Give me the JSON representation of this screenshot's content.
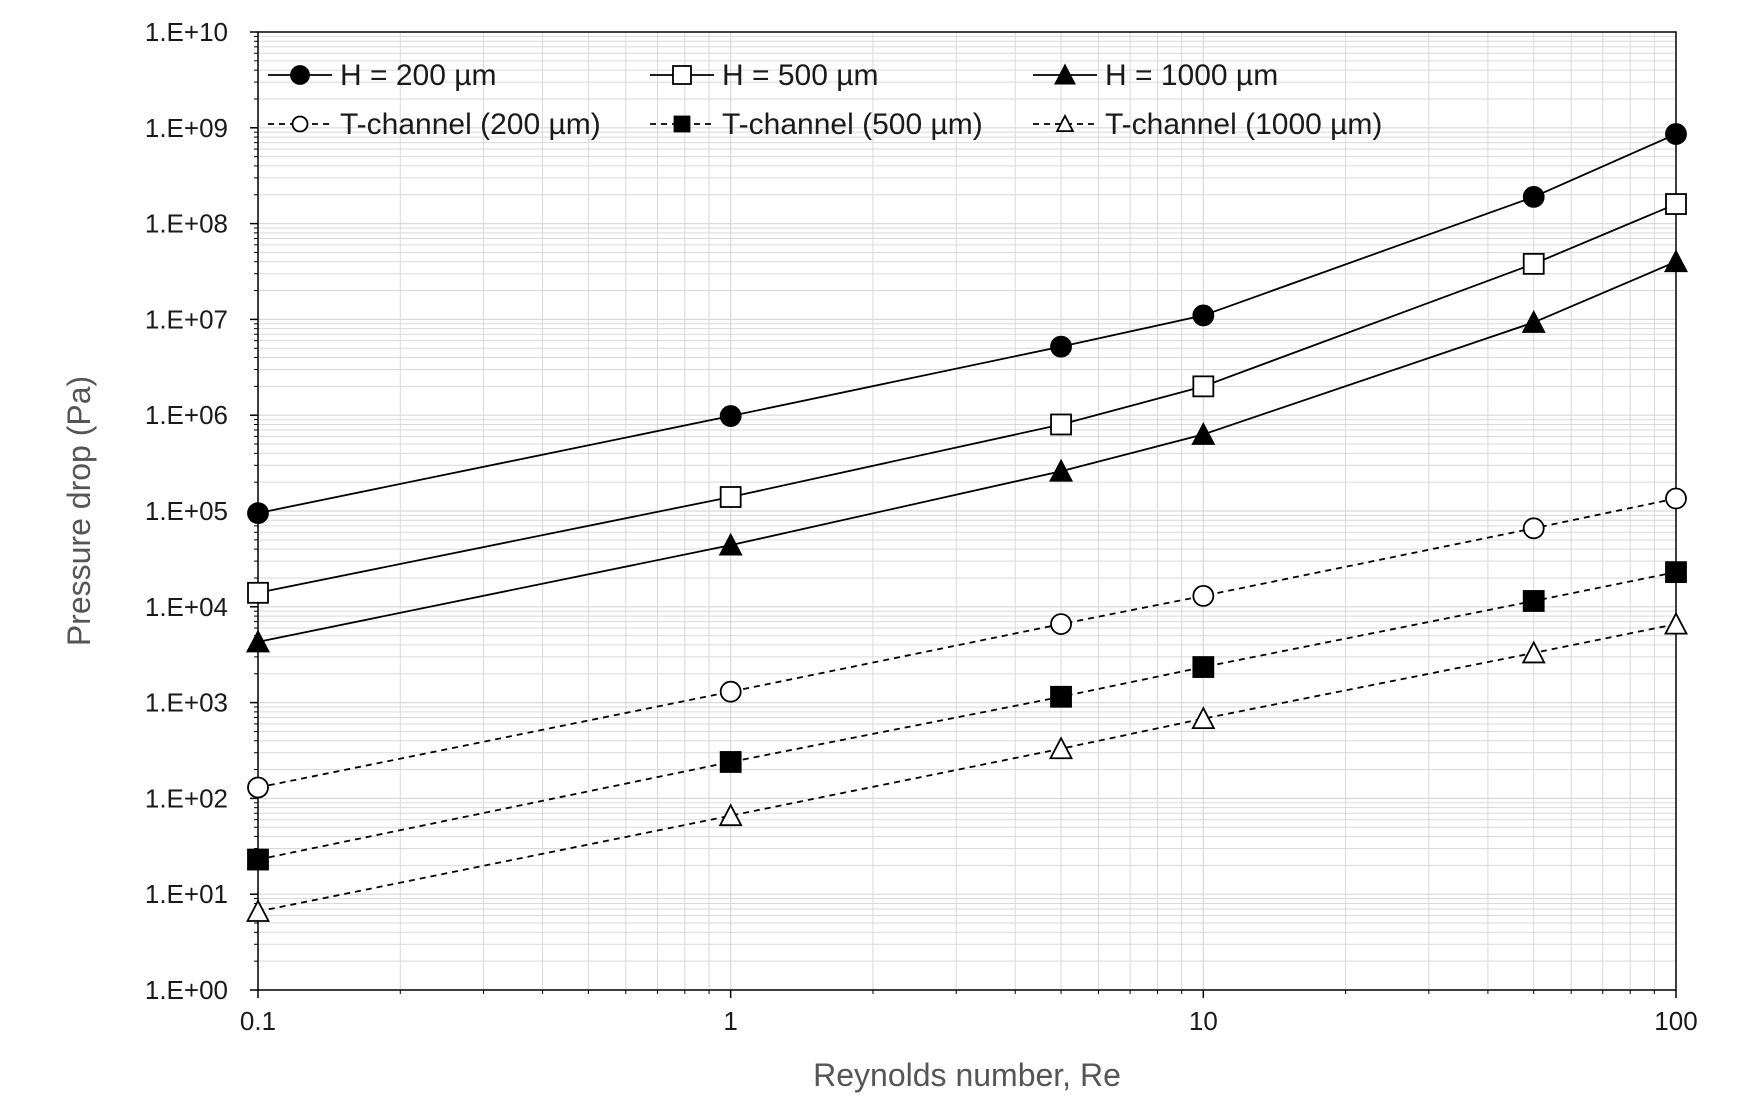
{
  "chart_data": {
    "type": "line",
    "title": "",
    "xlabel": "Reynolds number, Re",
    "ylabel": "Pressure drop (Pa)",
    "x_scale": "log",
    "y_scale": "log",
    "xlim": [
      0.1,
      100
    ],
    "ylim": [
      1,
      10000000000
    ],
    "x_ticks": [
      0.1,
      1,
      10,
      100
    ],
    "x_tick_labels": [
      "0.1",
      "1",
      "10",
      "100"
    ],
    "y_ticks": [
      1,
      10,
      100,
      1000,
      10000,
      100000,
      1000000,
      10000000,
      100000000,
      1000000000,
      10000000000
    ],
    "y_tick_labels": [
      "1.E+00",
      "1.E+01",
      "1.E+02",
      "1.E+03",
      "1.E+04",
      "1.E+05",
      "1.E+06",
      "1.E+07",
      "1.E+08",
      "1.E+09",
      "1.E+10"
    ],
    "grid": true,
    "legend_position": "top, inside plot area, two rows of three",
    "x": [
      0.1,
      1,
      5,
      10,
      50,
      100
    ],
    "series": [
      {
        "name": "H = 200 µm",
        "marker": "circle",
        "fill": "filled",
        "line": "solid",
        "values": [
          95000,
          980000,
          5200000,
          11000000,
          190000000,
          860000000
        ]
      },
      {
        "name": "H = 500 µm",
        "marker": "square",
        "fill": "open",
        "line": "solid",
        "values": [
          14000,
          140000,
          800000,
          2000000,
          38000000,
          160000000
        ]
      },
      {
        "name": "H = 1000 µm",
        "marker": "triangle",
        "fill": "filled",
        "line": "solid",
        "values": [
          4300,
          44000,
          260000,
          630000,
          9300000,
          40000000
        ]
      },
      {
        "name": "T-channel (200 µm)",
        "marker": "circle",
        "fill": "open",
        "line": "dashed",
        "values": [
          130,
          1300,
          6600,
          13000,
          66000,
          135000
        ]
      },
      {
        "name": "T-channel (500 µm)",
        "marker": "square",
        "fill": "filled",
        "line": "dashed",
        "values": [
          23,
          240,
          1150,
          2350,
          11500,
          23000
        ]
      },
      {
        "name": "T-channel (1000 µm)",
        "marker": "triangle",
        "fill": "open",
        "line": "dashed",
        "values": [
          6.6,
          66,
          330,
          680,
          3300,
          6600
        ]
      }
    ],
    "colors": {
      "line": "#000000",
      "grid": "#d9d9d9",
      "axis_title": "#555555"
    }
  }
}
